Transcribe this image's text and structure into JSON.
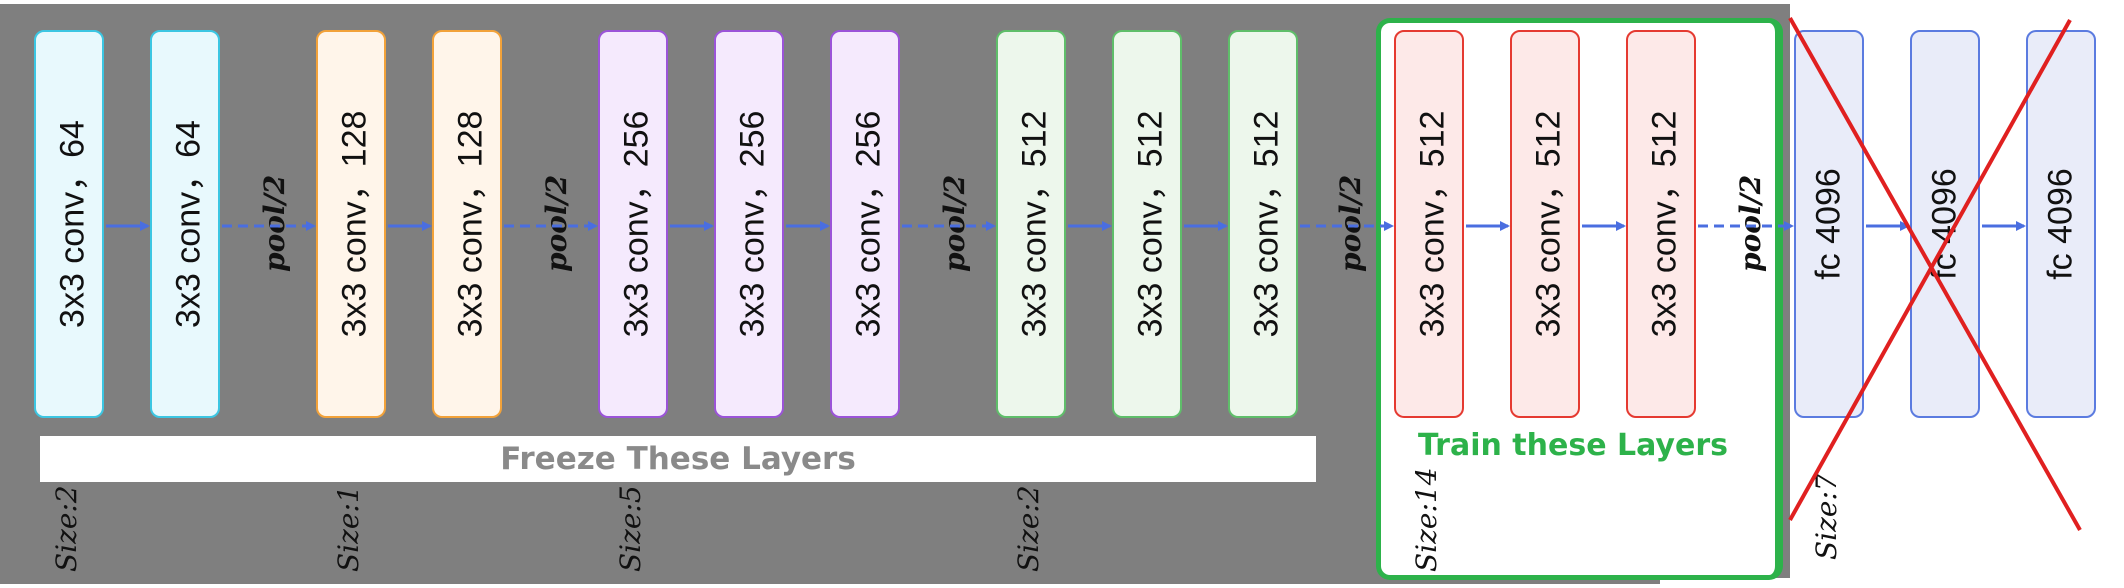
{
  "conv_layers": {
    "l1": "3x3 conv，64",
    "l2": "3x3 conv，64",
    "l3": "3x3 conv，128",
    "l4": "3x3 conv，128",
    "l5": "3x3 conv，256",
    "l6": "3x3 conv，256",
    "l7": "3x3 conv，256",
    "l8": "3x3 conv，512",
    "l9": "3x3 conv，512",
    "l10": "3x3 conv，512",
    "l11": "3x3 conv，512",
    "l12": "3x3 conv，512",
    "l13": "3x3 conv，512"
  },
  "fc_layers": {
    "f1": "fc 4096",
    "f2": "fc 4096",
    "f3": "fc 4096"
  },
  "pool_label": "pool/2",
  "size_labels": {
    "s1": "Size:2",
    "s2": "Size:1",
    "s3": "Size:5",
    "s4": "Size:2",
    "s5": "Size:14",
    "s6": "Size:7"
  },
  "freeze_label": "Freeze These Layers",
  "train_label": "Train these Layers",
  "colors": {
    "gray_background": "#7f7f7f",
    "train_border": "#2db24a",
    "arrow": "#4a6ee0",
    "cross": "#e02020"
  }
}
